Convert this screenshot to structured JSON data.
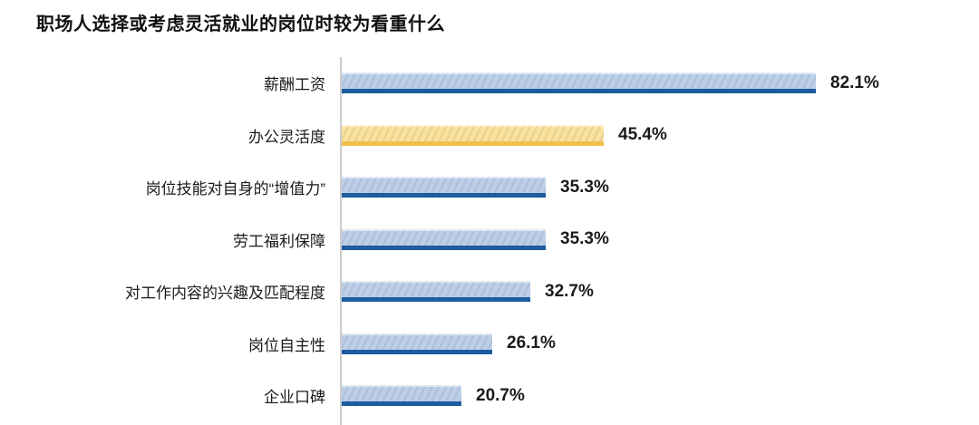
{
  "title": "职场人选择或考虑灵活就业的岗位时较为看重什么",
  "chart_data": {
    "type": "bar",
    "orientation": "horizontal",
    "categories": [
      "薪酬工资",
      "办公灵活度",
      "岗位技能对自身的“增值力”",
      "劳工福利保障",
      "对工作内容的兴趣及匹配程度",
      "岗位自主性",
      "企业口碑"
    ],
    "values": [
      82.1,
      45.4,
      35.3,
      35.3,
      32.7,
      26.1,
      20.7
    ],
    "value_labels": [
      "82.1%",
      "45.4%",
      "35.3%",
      "35.3%",
      "32.7%",
      "26.1%",
      "20.7%"
    ],
    "highlight_index": 1,
    "xlim": [
      0,
      110
    ],
    "grid": false,
    "legend": false,
    "colors": {
      "bar_fill": "#bccfe7",
      "bar_stripe": "#1c5c9f",
      "highlight_fill": "#fbe29b",
      "highlight_stripe": "#f2c14b",
      "axis_line": "#cccccc",
      "text": "#1a1a1a"
    }
  }
}
